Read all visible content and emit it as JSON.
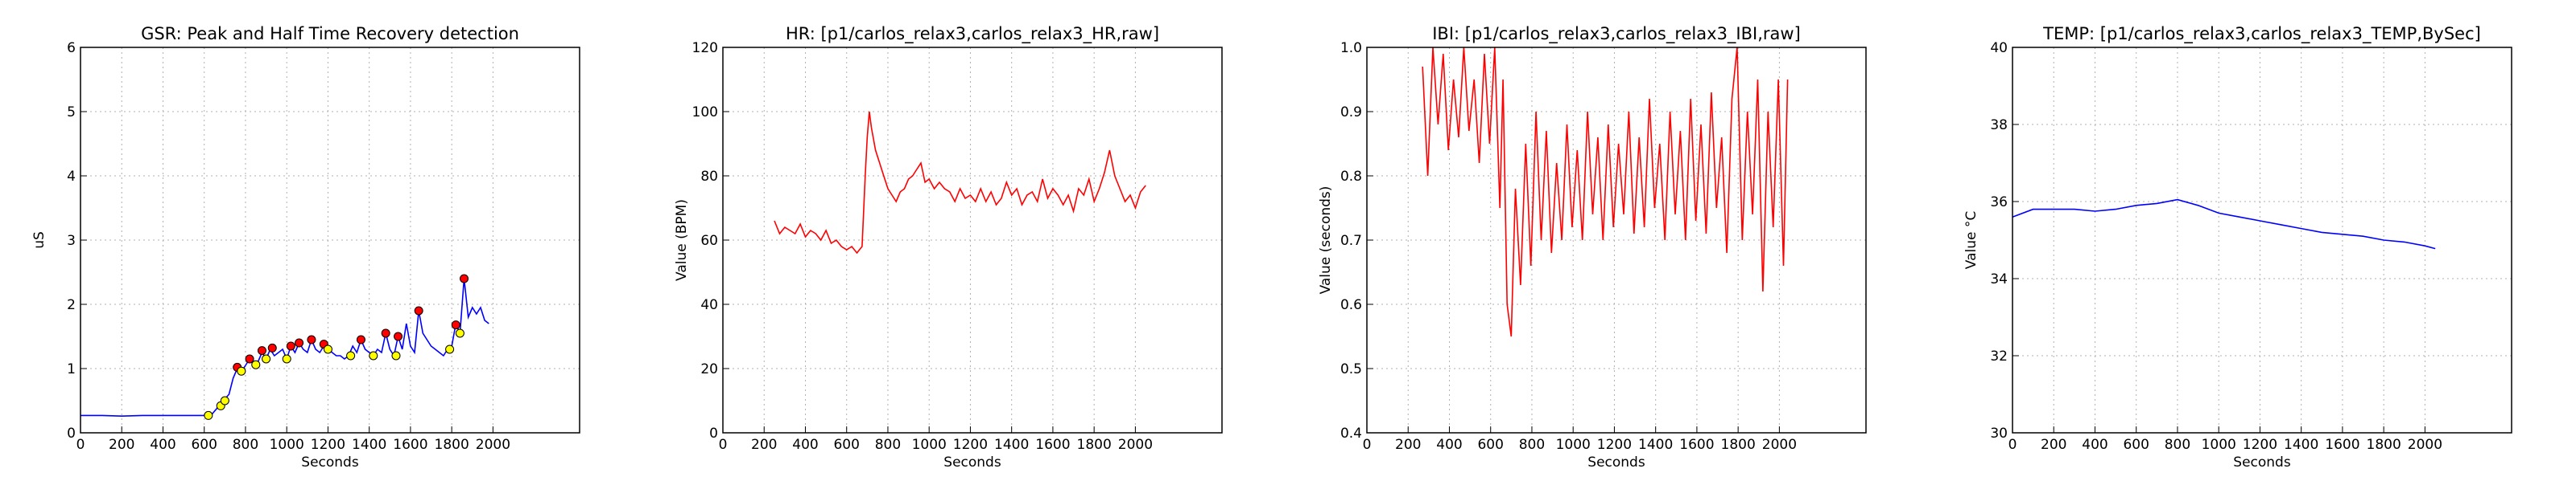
{
  "chart_data": [
    {
      "type": "line",
      "title": "GSR: Peak and Half Time Recovery detection",
      "xlabel": "Seconds",
      "ylabel": "uS",
      "xlim": [
        0,
        2420
      ],
      "xticks": [
        0,
        200,
        400,
        600,
        800,
        1000,
        1200,
        1400,
        1600,
        1800,
        2000
      ],
      "ylim": [
        0,
        6
      ],
      "yticks": [
        0,
        1,
        2,
        3,
        4,
        5,
        6
      ],
      "grid": true,
      "series": [
        {
          "kind": "line",
          "color": "#0000ff",
          "x": [
            0,
            100,
            200,
            300,
            400,
            500,
            600,
            640,
            680,
            720,
            740,
            760,
            780,
            800,
            820,
            840,
            860,
            880,
            900,
            920,
            940,
            960,
            980,
            1000,
            1020,
            1040,
            1060,
            1080,
            1100,
            1120,
            1140,
            1160,
            1180,
            1200,
            1220,
            1240,
            1260,
            1280,
            1300,
            1320,
            1340,
            1360,
            1380,
            1400,
            1420,
            1440,
            1460,
            1480,
            1500,
            1520,
            1540,
            1560,
            1580,
            1600,
            1620,
            1640,
            1660,
            1680,
            1700,
            1720,
            1740,
            1760,
            1780,
            1800,
            1820,
            1840,
            1860,
            1880,
            1900,
            1920,
            1940,
            1960,
            1980
          ],
          "values": [
            0.27,
            0.27,
            0.26,
            0.27,
            0.27,
            0.27,
            0.27,
            0.3,
            0.45,
            0.6,
            0.85,
            1.0,
            0.95,
            1.05,
            1.15,
            1.05,
            1.1,
            1.25,
            1.15,
            1.3,
            1.2,
            1.25,
            1.3,
            1.15,
            1.35,
            1.25,
            1.4,
            1.3,
            1.25,
            1.45,
            1.3,
            1.25,
            1.35,
            1.3,
            1.25,
            1.2,
            1.2,
            1.15,
            1.2,
            1.35,
            1.25,
            1.45,
            1.3,
            1.25,
            1.2,
            1.3,
            1.25,
            1.55,
            1.3,
            1.2,
            1.5,
            1.3,
            1.7,
            1.35,
            1.25,
            1.9,
            1.55,
            1.45,
            1.35,
            1.3,
            1.25,
            1.2,
            1.3,
            1.35,
            1.7,
            1.55,
            2.4,
            1.8,
            1.95,
            1.85,
            1.95,
            1.75,
            1.7
          ]
        },
        {
          "kind": "scatter",
          "color": "#ff0000",
          "x": [
            760,
            820,
            880,
            930,
            1020,
            1060,
            1120,
            1180,
            1360,
            1480,
            1540,
            1640,
            1820,
            1860
          ],
          "values": [
            1.02,
            1.15,
            1.28,
            1.32,
            1.35,
            1.4,
            1.45,
            1.38,
            1.45,
            1.55,
            1.5,
            1.9,
            1.68,
            2.4
          ]
        },
        {
          "kind": "scatter",
          "color": "#ffff00",
          "x": [
            620,
            680,
            700,
            780,
            850,
            900,
            1000,
            1200,
            1310,
            1420,
            1530,
            1790,
            1840
          ],
          "values": [
            0.27,
            0.42,
            0.5,
            0.96,
            1.06,
            1.15,
            1.15,
            1.3,
            1.2,
            1.2,
            1.2,
            1.3,
            1.55
          ]
        }
      ]
    },
    {
      "type": "line",
      "title": "HR: [p1/carlos_relax3,carlos_relax3_HR,raw]",
      "xlabel": "Seconds",
      "ylabel": "Value (BPM)",
      "xlim": [
        0,
        2420
      ],
      "xticks": [
        0,
        200,
        400,
        600,
        800,
        1000,
        1200,
        1400,
        1600,
        1800,
        2000
      ],
      "ylim": [
        0,
        120
      ],
      "yticks": [
        0,
        20,
        40,
        60,
        80,
        100,
        120
      ],
      "grid": true,
      "series": [
        {
          "kind": "line",
          "color": "#ff0000",
          "x": [
            250,
            275,
            300,
            325,
            350,
            375,
            400,
            425,
            450,
            475,
            500,
            525,
            550,
            575,
            600,
            625,
            650,
            675,
            690,
            700,
            710,
            720,
            740,
            760,
            780,
            800,
            820,
            840,
            860,
            880,
            900,
            920,
            940,
            960,
            980,
            1000,
            1025,
            1050,
            1075,
            1100,
            1125,
            1150,
            1175,
            1200,
            1225,
            1250,
            1275,
            1300,
            1325,
            1350,
            1375,
            1400,
            1425,
            1450,
            1475,
            1500,
            1525,
            1550,
            1575,
            1600,
            1625,
            1650,
            1675,
            1700,
            1725,
            1750,
            1775,
            1800,
            1825,
            1850,
            1875,
            1900,
            1925,
            1950,
            1975,
            2000,
            2025,
            2050
          ],
          "values": [
            66,
            62,
            64,
            63,
            62,
            65,
            61,
            63,
            62,
            60,
            63,
            59,
            60,
            58,
            57,
            58,
            56,
            58,
            80,
            92,
            100,
            95,
            88,
            84,
            80,
            76,
            74,
            72,
            75,
            76,
            79,
            80,
            82,
            84,
            78,
            79,
            76,
            78,
            76,
            75,
            72,
            76,
            73,
            74,
            72,
            76,
            72,
            75,
            71,
            73,
            78,
            74,
            76,
            71,
            74,
            75,
            72,
            79,
            73,
            76,
            74,
            71,
            74,
            69,
            76,
            74,
            79,
            72,
            76,
            81,
            88,
            80,
            76,
            72,
            74,
            70,
            75,
            77
          ]
        }
      ]
    },
    {
      "type": "line",
      "title": "IBI: [p1/carlos_relax3,carlos_relax3_IBI,raw]",
      "xlabel": "Seconds",
      "ylabel": "Value (seconds)",
      "xlim": [
        0,
        2420
      ],
      "xticks": [
        0,
        200,
        400,
        600,
        800,
        1000,
        1200,
        1400,
        1600,
        1800,
        2000
      ],
      "ylim": [
        0.4,
        1.0
      ],
      "yticks": [
        0.4,
        0.5,
        0.6,
        0.7,
        0.8,
        0.9,
        {
          "value": 1,
          "label": "1.0"
        }
      ],
      "grid": true,
      "series": [
        {
          "kind": "line",
          "color": "#ff0000",
          "x": [
            270,
            295,
            320,
            345,
            370,
            395,
            420,
            445,
            470,
            495,
            520,
            545,
            570,
            595,
            620,
            645,
            660,
            680,
            700,
            720,
            745,
            770,
            795,
            820,
            845,
            870,
            895,
            920,
            945,
            970,
            995,
            1020,
            1045,
            1070,
            1095,
            1120,
            1145,
            1170,
            1195,
            1220,
            1245,
            1270,
            1295,
            1320,
            1345,
            1370,
            1395,
            1420,
            1445,
            1470,
            1495,
            1520,
            1545,
            1570,
            1595,
            1620,
            1645,
            1670,
            1695,
            1720,
            1745,
            1770,
            1795,
            1820,
            1845,
            1870,
            1895,
            1920,
            1945,
            1970,
            1995,
            2020,
            2040
          ],
          "values": [
            0.97,
            0.8,
            1.0,
            0.88,
            0.99,
            0.84,
            0.95,
            0.86,
            1.0,
            0.87,
            0.95,
            0.82,
            0.99,
            0.85,
            1.0,
            0.75,
            0.95,
            0.6,
            0.55,
            0.78,
            0.63,
            0.85,
            0.66,
            0.9,
            0.7,
            0.87,
            0.68,
            0.82,
            0.7,
            0.88,
            0.72,
            0.84,
            0.7,
            0.9,
            0.74,
            0.86,
            0.7,
            0.88,
            0.72,
            0.85,
            0.74,
            0.9,
            0.71,
            0.86,
            0.72,
            0.92,
            0.75,
            0.85,
            0.7,
            0.9,
            0.74,
            0.87,
            0.7,
            0.92,
            0.73,
            0.88,
            0.71,
            0.93,
            0.75,
            0.86,
            0.68,
            0.92,
            1.0,
            0.7,
            0.9,
            0.74,
            0.95,
            0.62,
            0.9,
            0.72,
            0.95,
            0.66,
            0.95
          ]
        }
      ]
    },
    {
      "type": "line",
      "title": "TEMP: [p1/carlos_relax3,carlos_relax3_TEMP,BySec]",
      "xlabel": "Seconds",
      "ylabel": "Value °C",
      "xlim": [
        0,
        2420
      ],
      "xticks": [
        0,
        200,
        400,
        600,
        800,
        1000,
        1200,
        1400,
        1600,
        1800,
        2000
      ],
      "ylim": [
        30,
        40
      ],
      "yticks": [
        30,
        32,
        34,
        36,
        38,
        40
      ],
      "grid": true,
      "series": [
        {
          "kind": "line",
          "color": "#0000ff",
          "x": [
            0,
            100,
            200,
            300,
            400,
            500,
            600,
            700,
            800,
            900,
            1000,
            1100,
            1200,
            1300,
            1400,
            1500,
            1600,
            1700,
            1800,
            1900,
            2000,
            2050
          ],
          "values": [
            35.6,
            35.8,
            35.8,
            35.8,
            35.75,
            35.8,
            35.9,
            35.95,
            36.05,
            35.9,
            35.7,
            35.6,
            35.5,
            35.4,
            35.3,
            35.2,
            35.15,
            35.1,
            35.0,
            34.95,
            34.85,
            34.78
          ]
        }
      ]
    }
  ]
}
